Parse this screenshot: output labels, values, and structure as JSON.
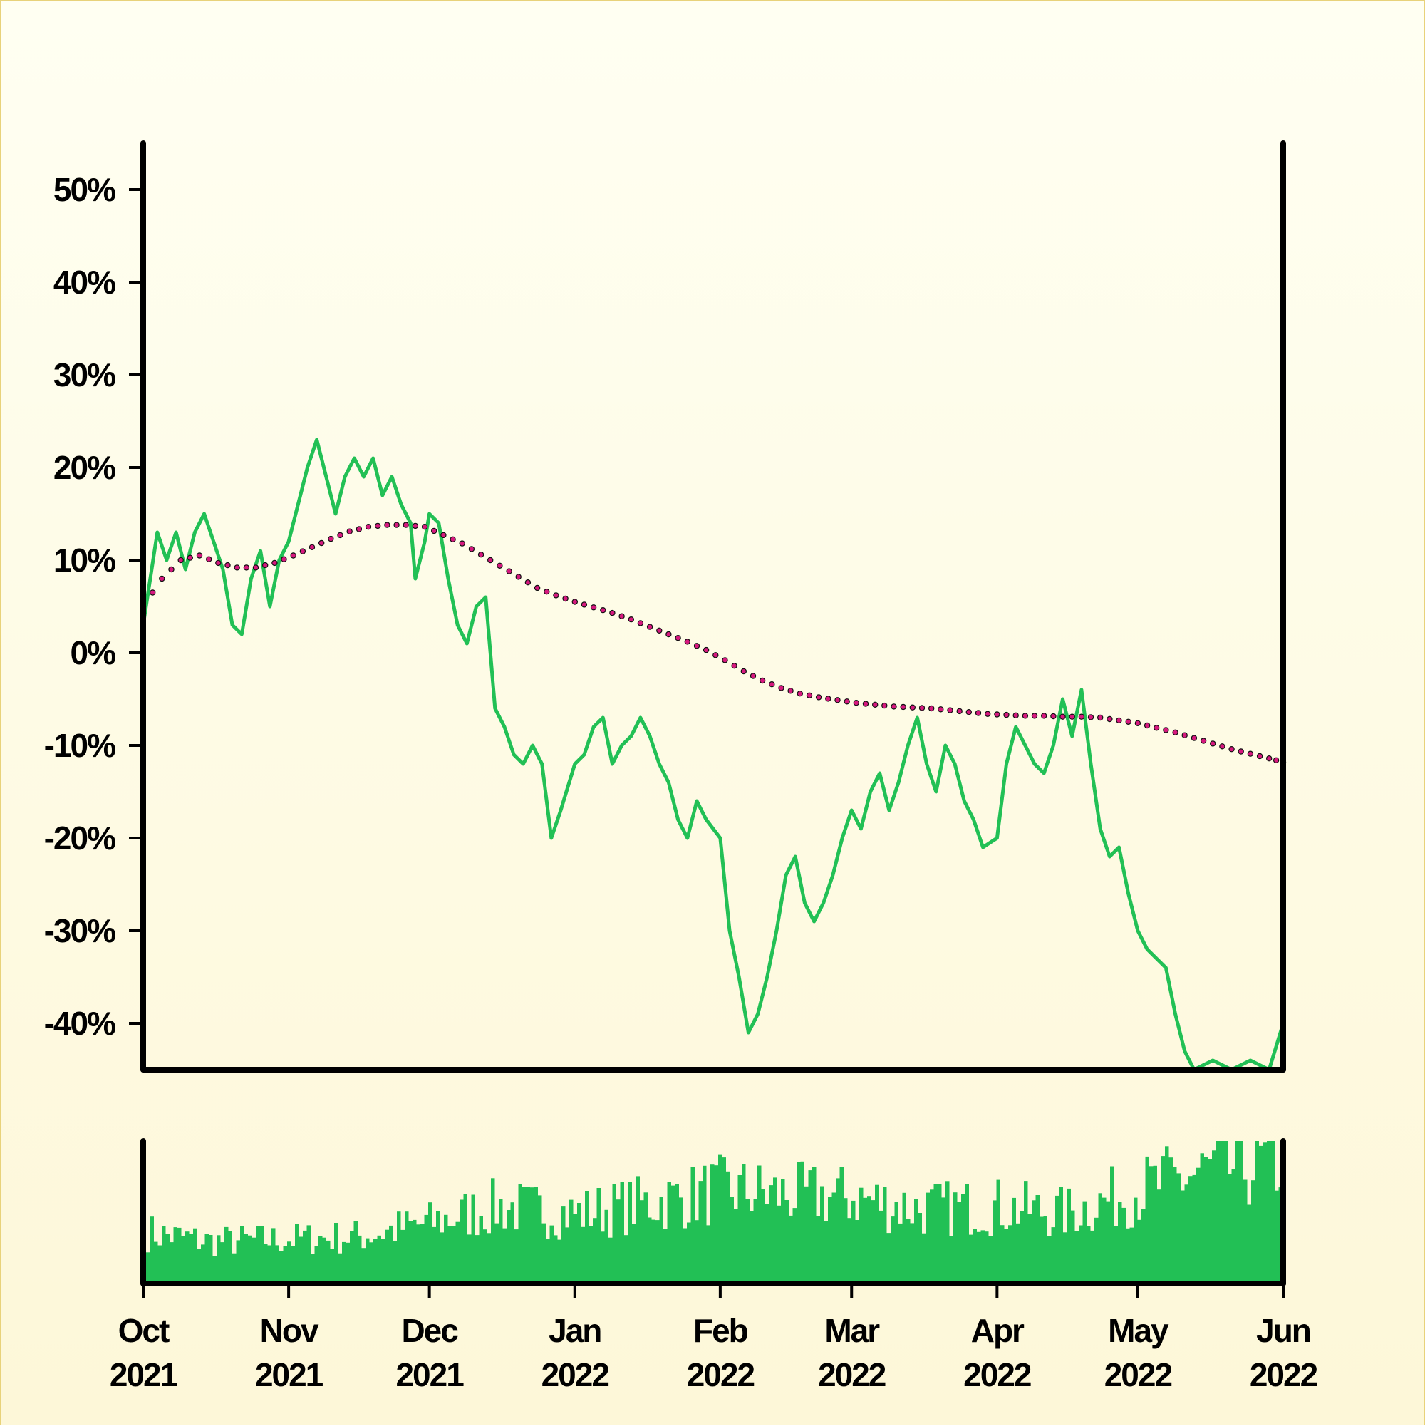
{
  "chart_data": {
    "type": "line",
    "x_axis": {
      "type": "date",
      "range": [
        "2021-10-01",
        "2022-06-01"
      ],
      "ticks": [
        {
          "date": "2021-10-01",
          "label": [
            "Oct",
            "2021"
          ]
        },
        {
          "date": "2021-11-01",
          "label": [
            "Nov",
            "2021"
          ]
        },
        {
          "date": "2021-12-01",
          "label": [
            "Dec",
            "2021"
          ]
        },
        {
          "date": "2022-01-01",
          "label": [
            "Jan",
            "2022"
          ]
        },
        {
          "date": "2022-02-01",
          "label": [
            "Feb",
            "2022"
          ]
        },
        {
          "date": "2022-03-01",
          "label": [
            "Mar",
            "2022"
          ]
        },
        {
          "date": "2022-04-01",
          "label": [
            "Apr",
            "2022"
          ]
        },
        {
          "date": "2022-05-01",
          "label": [
            "May",
            "2022"
          ]
        },
        {
          "date": "2022-06-01",
          "label": [
            "Jun",
            "2022"
          ]
        }
      ]
    },
    "y_axis": {
      "unit": "%",
      "range": [
        -45,
        55
      ],
      "ticks": [
        {
          "value": 50,
          "label": "50%"
        },
        {
          "value": 40,
          "label": "40%"
        },
        {
          "value": 30,
          "label": "30%"
        },
        {
          "value": 20,
          "label": "20%"
        },
        {
          "value": 10,
          "label": "10%"
        },
        {
          "value": 0,
          "label": "0%"
        },
        {
          "value": -10,
          "label": "-10%"
        },
        {
          "value": -20,
          "label": "-20%"
        },
        {
          "value": -30,
          "label": "-30%"
        },
        {
          "value": -40,
          "label": "-40%"
        }
      ]
    },
    "grid": false,
    "legend": "none",
    "series": [
      {
        "style": "solid line",
        "color": "#22c055",
        "points": [
          [
            "2021-10-01",
            3
          ],
          [
            "2021-10-04",
            13
          ],
          [
            "2021-10-06",
            10
          ],
          [
            "2021-10-08",
            13
          ],
          [
            "2021-10-10",
            9
          ],
          [
            "2021-10-12",
            13
          ],
          [
            "2021-10-14",
            15
          ],
          [
            "2021-10-16",
            12
          ],
          [
            "2021-10-18",
            9
          ],
          [
            "2021-10-20",
            3
          ],
          [
            "2021-10-22",
            2
          ],
          [
            "2021-10-24",
            8
          ],
          [
            "2021-10-26",
            11
          ],
          [
            "2021-10-28",
            5
          ],
          [
            "2021-10-30",
            10
          ],
          [
            "2021-11-01",
            12
          ],
          [
            "2021-11-03",
            16
          ],
          [
            "2021-11-05",
            20
          ],
          [
            "2021-11-07",
            23
          ],
          [
            "2021-11-09",
            19
          ],
          [
            "2021-11-11",
            15
          ],
          [
            "2021-11-13",
            19
          ],
          [
            "2021-11-15",
            21
          ],
          [
            "2021-11-17",
            19
          ],
          [
            "2021-11-19",
            21
          ],
          [
            "2021-11-21",
            17
          ],
          [
            "2021-11-23",
            19
          ],
          [
            "2021-11-25",
            16
          ],
          [
            "2021-11-27",
            14
          ],
          [
            "2021-11-28",
            8
          ],
          [
            "2021-11-30",
            12
          ],
          [
            "2021-12-01",
            15
          ],
          [
            "2021-12-03",
            14
          ],
          [
            "2021-12-05",
            8
          ],
          [
            "2021-12-07",
            3
          ],
          [
            "2021-12-09",
            1
          ],
          [
            "2021-12-11",
            5
          ],
          [
            "2021-12-13",
            6
          ],
          [
            "2021-12-15",
            -6
          ],
          [
            "2021-12-17",
            -8
          ],
          [
            "2021-12-19",
            -11
          ],
          [
            "2021-12-21",
            -12
          ],
          [
            "2021-12-23",
            -10
          ],
          [
            "2021-12-25",
            -12
          ],
          [
            "2021-12-27",
            -20
          ],
          [
            "2021-12-29",
            -17
          ],
          [
            "2022-01-01",
            -12
          ],
          [
            "2022-01-03",
            -11
          ],
          [
            "2022-01-05",
            -8
          ],
          [
            "2022-01-07",
            -7
          ],
          [
            "2022-01-09",
            -12
          ],
          [
            "2022-01-11",
            -10
          ],
          [
            "2022-01-13",
            -9
          ],
          [
            "2022-01-15",
            -7
          ],
          [
            "2022-01-17",
            -9
          ],
          [
            "2022-01-19",
            -12
          ],
          [
            "2022-01-21",
            -14
          ],
          [
            "2022-01-23",
            -18
          ],
          [
            "2022-01-25",
            -20
          ],
          [
            "2022-01-27",
            -16
          ],
          [
            "2022-01-29",
            -18
          ],
          [
            "2022-02-01",
            -20
          ],
          [
            "2022-02-03",
            -30
          ],
          [
            "2022-02-05",
            -35
          ],
          [
            "2022-02-07",
            -41
          ],
          [
            "2022-02-09",
            -39
          ],
          [
            "2022-02-11",
            -35
          ],
          [
            "2022-02-13",
            -30
          ],
          [
            "2022-02-15",
            -24
          ],
          [
            "2022-02-17",
            -22
          ],
          [
            "2022-02-19",
            -27
          ],
          [
            "2022-02-21",
            -29
          ],
          [
            "2022-02-23",
            -27
          ],
          [
            "2022-02-25",
            -24
          ],
          [
            "2022-02-27",
            -20
          ],
          [
            "2022-03-01",
            -17
          ],
          [
            "2022-03-03",
            -19
          ],
          [
            "2022-03-05",
            -15
          ],
          [
            "2022-03-07",
            -13
          ],
          [
            "2022-03-09",
            -17
          ],
          [
            "2022-03-11",
            -14
          ],
          [
            "2022-03-13",
            -10
          ],
          [
            "2022-03-15",
            -7
          ],
          [
            "2022-03-17",
            -12
          ],
          [
            "2022-03-19",
            -15
          ],
          [
            "2022-03-21",
            -10
          ],
          [
            "2022-03-23",
            -12
          ],
          [
            "2022-03-25",
            -16
          ],
          [
            "2022-03-27",
            -18
          ],
          [
            "2022-03-29",
            -21
          ],
          [
            "2022-04-01",
            -20
          ],
          [
            "2022-04-03",
            -12
          ],
          [
            "2022-04-05",
            -8
          ],
          [
            "2022-04-07",
            -10
          ],
          [
            "2022-04-09",
            -12
          ],
          [
            "2022-04-11",
            -13
          ],
          [
            "2022-04-13",
            -10
          ],
          [
            "2022-04-15",
            -5
          ],
          [
            "2022-04-17",
            -9
          ],
          [
            "2022-04-19",
            -4
          ],
          [
            "2022-04-21",
            -12
          ],
          [
            "2022-04-23",
            -19
          ],
          [
            "2022-04-25",
            -22
          ],
          [
            "2022-04-27",
            -21
          ],
          [
            "2022-04-29",
            -26
          ],
          [
            "2022-05-01",
            -30
          ],
          [
            "2022-05-03",
            -32
          ],
          [
            "2022-05-05",
            -33
          ],
          [
            "2022-05-07",
            -34
          ],
          [
            "2022-05-09",
            -39
          ],
          [
            "2022-05-11",
            -43
          ],
          [
            "2022-05-13",
            -45
          ],
          [
            "2022-05-17",
            -44
          ],
          [
            "2022-05-21",
            -45
          ],
          [
            "2022-05-25",
            -44
          ],
          [
            "2022-05-29",
            -45
          ],
          [
            "2022-06-01",
            -40
          ]
        ]
      },
      {
        "style": "dotted line",
        "color": "#d6187e",
        "points": [
          [
            "2021-10-01",
            5
          ],
          [
            "2021-10-05",
            8
          ],
          [
            "2021-10-09",
            10
          ],
          [
            "2021-10-13",
            10.5
          ],
          [
            "2021-10-17",
            9.7
          ],
          [
            "2021-10-21",
            9.2
          ],
          [
            "2021-10-25",
            9.2
          ],
          [
            "2021-10-29",
            9.7
          ],
          [
            "2021-11-02",
            10.5
          ],
          [
            "2021-11-06",
            11.4
          ],
          [
            "2021-11-10",
            12.3
          ],
          [
            "2021-11-14",
            13.1
          ],
          [
            "2021-11-18",
            13.6
          ],
          [
            "2021-11-22",
            13.8
          ],
          [
            "2021-11-26",
            13.8
          ],
          [
            "2021-11-30",
            13.6
          ],
          [
            "2021-12-04",
            12.7
          ],
          [
            "2021-12-08",
            11.8
          ],
          [
            "2021-12-12",
            10.6
          ],
          [
            "2021-12-16",
            9.4
          ],
          [
            "2021-12-20",
            8.2
          ],
          [
            "2021-12-24",
            7.0
          ],
          [
            "2021-12-28",
            6.2
          ],
          [
            "2022-01-01",
            5.5
          ],
          [
            "2022-01-05",
            4.9
          ],
          [
            "2022-01-09",
            4.3
          ],
          [
            "2022-01-13",
            3.6
          ],
          [
            "2022-01-17",
            2.8
          ],
          [
            "2022-01-21",
            2.0
          ],
          [
            "2022-01-25",
            1.2
          ],
          [
            "2022-01-29",
            0.3
          ],
          [
            "2022-02-02",
            -0.8
          ],
          [
            "2022-02-06",
            -2.0
          ],
          [
            "2022-02-10",
            -3.0
          ],
          [
            "2022-02-14",
            -3.8
          ],
          [
            "2022-02-18",
            -4.4
          ],
          [
            "2022-02-22",
            -4.8
          ],
          [
            "2022-02-26",
            -5.1
          ],
          [
            "2022-03-02",
            -5.4
          ],
          [
            "2022-03-06",
            -5.6
          ],
          [
            "2022-03-10",
            -5.8
          ],
          [
            "2022-03-14",
            -5.9
          ],
          [
            "2022-03-18",
            -6.0
          ],
          [
            "2022-03-22",
            -6.2
          ],
          [
            "2022-03-26",
            -6.4
          ],
          [
            "2022-03-30",
            -6.6
          ],
          [
            "2022-04-03",
            -6.7
          ],
          [
            "2022-04-07",
            -6.8
          ],
          [
            "2022-04-11",
            -6.8
          ],
          [
            "2022-04-15",
            -6.9
          ],
          [
            "2022-04-19",
            -6.9
          ],
          [
            "2022-04-23",
            -7.0
          ],
          [
            "2022-04-27",
            -7.3
          ],
          [
            "2022-05-01",
            -7.6
          ],
          [
            "2022-05-05",
            -8.1
          ],
          [
            "2022-05-09",
            -8.6
          ],
          [
            "2022-05-13",
            -9.2
          ],
          [
            "2022-05-17",
            -9.8
          ],
          [
            "2022-05-21",
            -10.4
          ],
          [
            "2022-05-25",
            -10.9
          ],
          [
            "2022-05-29",
            -11.4
          ],
          [
            "2022-06-01",
            -11.8
          ]
        ]
      },
      {
        "style": "volume bars",
        "color": "#22c055",
        "points": [
          [
            "2021-10-01",
            22
          ],
          [
            "2021-10-15",
            18
          ],
          [
            "2021-11-01",
            19
          ],
          [
            "2021-11-15",
            20
          ],
          [
            "2021-12-01",
            26
          ],
          [
            "2021-12-15",
            33
          ],
          [
            "2022-01-01",
            30
          ],
          [
            "2022-01-15",
            34
          ],
          [
            "2022-02-01",
            40
          ],
          [
            "2022-02-15",
            38
          ],
          [
            "2022-03-01",
            37
          ],
          [
            "2022-03-15",
            32
          ],
          [
            "2022-04-01",
            33
          ],
          [
            "2022-04-15",
            30
          ],
          [
            "2022-05-01",
            40
          ],
          [
            "2022-05-15",
            48
          ],
          [
            "2022-06-01",
            52
          ]
        ]
      }
    ]
  }
}
